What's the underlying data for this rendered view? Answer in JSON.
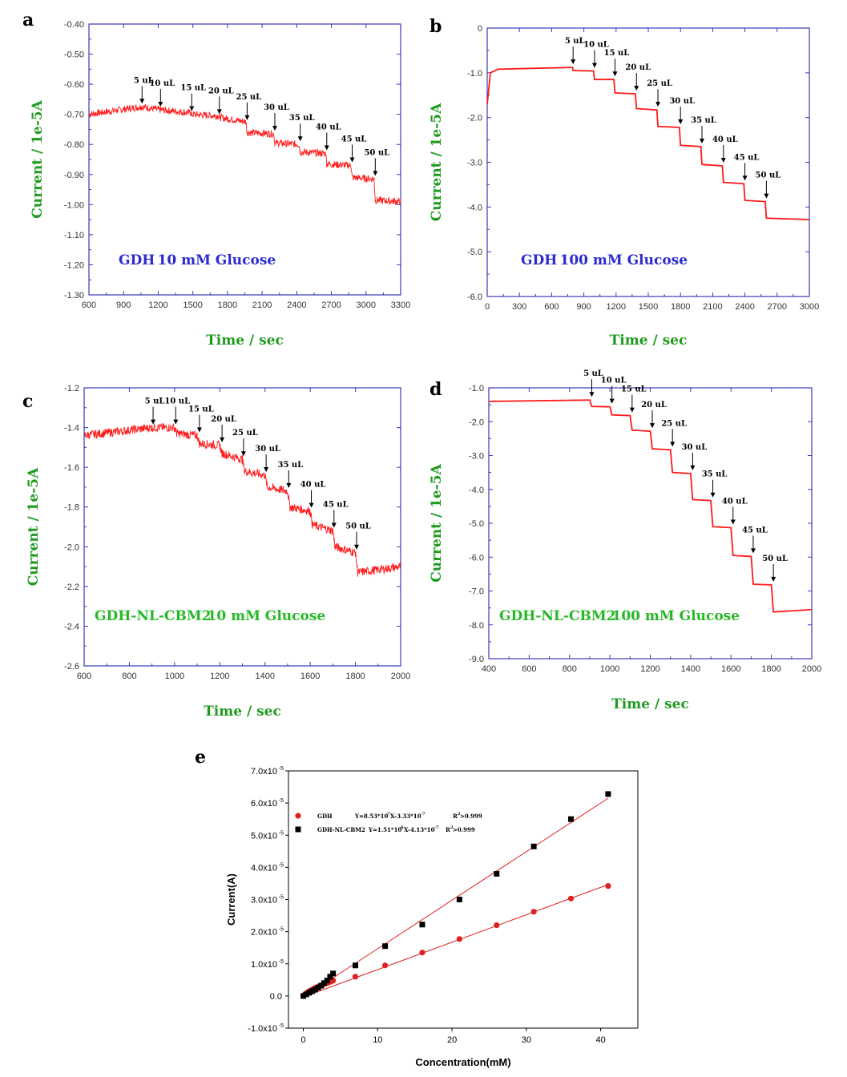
{
  "colors": {
    "trace": "#ff1a1a",
    "frame": "#3a3ab8",
    "green": "#1f9a1f",
    "blue": "#2a2ad0",
    "fitRed": "#e02020",
    "black": "#000000"
  },
  "chart_data": [
    {
      "id": "a",
      "panel_label": "a",
      "type": "line",
      "title": "GDH",
      "subtitle": "10 mM Glucose",
      "title_style": "blue",
      "xlabel": "Time / sec",
      "ylabel": "Current / 1e-5A",
      "xlim": [
        600,
        3300
      ],
      "ylim": [
        -1.3,
        -0.4
      ],
      "xticks": [
        "600",
        "900",
        "1200",
        "1500",
        "1800",
        "2100",
        "2400",
        "2700",
        "3000",
        "3300"
      ],
      "xtick_values": [
        600,
        900,
        1200,
        1500,
        1800,
        2100,
        2400,
        2700,
        3000,
        3300
      ],
      "yticks": [
        "-0.40",
        "-0.50",
        "-0.60",
        "-0.70",
        "-0.80",
        "-0.90",
        "-1.00",
        "-1.10",
        "-1.20",
        "-1.30"
      ],
      "ytick_values": [
        -0.4,
        -0.5,
        -0.6,
        -0.7,
        -0.8,
        -0.9,
        -1.0,
        -1.1,
        -1.2,
        -1.3
      ],
      "noise": 0.012,
      "trace": [
        [
          600,
          -0.7
        ],
        [
          1050,
          -0.675
        ],
        [
          1060,
          -0.675
        ],
        [
          1210,
          -0.685
        ],
        [
          1220,
          -0.685
        ],
        [
          1480,
          -0.695
        ],
        [
          1490,
          -0.7
        ],
        [
          1720,
          -0.705
        ],
        [
          1730,
          -0.71
        ],
        [
          1960,
          -0.725
        ],
        [
          1970,
          -0.76
        ],
        [
          2200,
          -0.765
        ],
        [
          2210,
          -0.795
        ],
        [
          2420,
          -0.8
        ],
        [
          2430,
          -0.825
        ],
        [
          2650,
          -0.83
        ],
        [
          2660,
          -0.865
        ],
        [
          2870,
          -0.87
        ],
        [
          2880,
          -0.91
        ],
        [
          3070,
          -0.915
        ],
        [
          3080,
          -0.985
        ],
        [
          3300,
          -0.99
        ]
      ],
      "annotations": [
        {
          "label": "5 uL",
          "x": 1060,
          "y": -0.675
        },
        {
          "label": "10 uL",
          "x": 1220,
          "y": -0.685
        },
        {
          "label": "15 uL",
          "x": 1490,
          "y": -0.7
        },
        {
          "label": "20 uL",
          "x": 1730,
          "y": -0.71
        },
        {
          "label": "25 uL",
          "x": 1970,
          "y": -0.73
        },
        {
          "label": "30 uL",
          "x": 2210,
          "y": -0.765
        },
        {
          "label": "35 uL",
          "x": 2430,
          "y": -0.8
        },
        {
          "label": "40 uL",
          "x": 2660,
          "y": -0.83
        },
        {
          "label": "45 uL",
          "x": 2880,
          "y": -0.87
        },
        {
          "label": "50 uL",
          "x": 3080,
          "y": -0.915
        }
      ]
    },
    {
      "id": "b",
      "panel_label": "b",
      "type": "line",
      "title": "GDH",
      "subtitle": "100 mM Glucose",
      "title_style": "blue",
      "xlabel": "Time / sec",
      "ylabel": "Current / 1e-5A",
      "xlim": [
        0,
        3000
      ],
      "ylim": [
        -6.0,
        0
      ],
      "xticks": [
        "0",
        "300",
        "600",
        "900",
        "1200",
        "1500",
        "1800",
        "2100",
        "2400",
        "2700",
        "3000"
      ],
      "xtick_values": [
        0,
        300,
        600,
        900,
        1200,
        1500,
        1800,
        2100,
        2400,
        2700,
        3000
      ],
      "yticks": [
        "0",
        "-1.0",
        "-2.0",
        "-3.0",
        "-4.0",
        "-5.0",
        "-6.0"
      ],
      "ytick_values": [
        0,
        -1,
        -2,
        -3,
        -4,
        -5,
        -6
      ],
      "noise": 0.0,
      "trace": [
        [
          0,
          -1.7
        ],
        [
          30,
          -1.0
        ],
        [
          100,
          -0.92
        ],
        [
          780,
          -0.88
        ],
        [
          795,
          -0.88
        ],
        [
          800,
          -0.95
        ],
        [
          990,
          -0.96
        ],
        [
          1000,
          -1.15
        ],
        [
          1180,
          -1.15
        ],
        [
          1190,
          -1.45
        ],
        [
          1380,
          -1.47
        ],
        [
          1390,
          -1.8
        ],
        [
          1580,
          -1.83
        ],
        [
          1590,
          -2.2
        ],
        [
          1790,
          -2.22
        ],
        [
          1800,
          -2.62
        ],
        [
          1990,
          -2.65
        ],
        [
          2000,
          -3.05
        ],
        [
          2190,
          -3.08
        ],
        [
          2200,
          -3.45
        ],
        [
          2390,
          -3.48
        ],
        [
          2400,
          -3.85
        ],
        [
          2590,
          -3.88
        ],
        [
          2600,
          -4.25
        ],
        [
          3000,
          -4.28
        ]
      ],
      "annotations": [
        {
          "label": "5 uL",
          "x": 800,
          "y": -0.88
        },
        {
          "label": "10 uL",
          "x": 1000,
          "y": -0.96
        },
        {
          "label": "15 uL",
          "x": 1190,
          "y": -1.15
        },
        {
          "label": "20 uL",
          "x": 1390,
          "y": -1.47
        },
        {
          "label": "25 uL",
          "x": 1590,
          "y": -1.83
        },
        {
          "label": "30 uL",
          "x": 1800,
          "y": -2.22
        },
        {
          "label": "35 uL",
          "x": 2000,
          "y": -2.65
        },
        {
          "label": "40 uL",
          "x": 2200,
          "y": -3.08
        },
        {
          "label": "45 uL",
          "x": 2400,
          "y": -3.48
        },
        {
          "label": "50 uL",
          "x": 2600,
          "y": -3.88
        }
      ]
    },
    {
      "id": "c",
      "panel_label": "c",
      "type": "line",
      "title": "GDH-NL-CBM2",
      "subtitle": "10 mM Glucose",
      "title_style": "green",
      "xlabel": "Time / sec",
      "ylabel": "Current / 1e-5A",
      "xlim": [
        600,
        2000
      ],
      "ylim": [
        -2.6,
        -1.2
      ],
      "xticks": [
        "600",
        "800",
        "1000",
        "1200",
        "1400",
        "1600",
        "1800",
        "2000"
      ],
      "xtick_values": [
        600,
        800,
        1000,
        1200,
        1400,
        1600,
        1800,
        2000
      ],
      "yticks": [
        "-1.2",
        "-1.4",
        "-1.6",
        "-1.8",
        "-2.0",
        "-2.2",
        "-2.4",
        "-2.6"
      ],
      "ytick_values": [
        -1.2,
        -1.4,
        -1.6,
        -1.8,
        -2.0,
        -2.2,
        -2.4,
        -2.6
      ],
      "noise": 0.022,
      "trace": [
        [
          600,
          -1.44
        ],
        [
          900,
          -1.4
        ],
        [
          1000,
          -1.4
        ],
        [
          1010,
          -1.43
        ],
        [
          1100,
          -1.44
        ],
        [
          1110,
          -1.48
        ],
        [
          1200,
          -1.49
        ],
        [
          1210,
          -1.53
        ],
        [
          1300,
          -1.56
        ],
        [
          1310,
          -1.62
        ],
        [
          1400,
          -1.64
        ],
        [
          1410,
          -1.7
        ],
        [
          1500,
          -1.72
        ],
        [
          1510,
          -1.8
        ],
        [
          1600,
          -1.82
        ],
        [
          1610,
          -1.89
        ],
        [
          1700,
          -1.92
        ],
        [
          1710,
          -2.0
        ],
        [
          1800,
          -2.03
        ],
        [
          1810,
          -2.13
        ],
        [
          2000,
          -2.1
        ]
      ],
      "annotations": [
        {
          "label": "5 uL",
          "x": 905,
          "y": -1.4
        },
        {
          "label": "10 uL",
          "x": 1005,
          "y": -1.4
        },
        {
          "label": "15 uL",
          "x": 1110,
          "y": -1.44
        },
        {
          "label": "20 uL",
          "x": 1210,
          "y": -1.49
        },
        {
          "label": "25 uL",
          "x": 1305,
          "y": -1.56
        },
        {
          "label": "30 uL",
          "x": 1405,
          "y": -1.64
        },
        {
          "label": "35 uL",
          "x": 1505,
          "y": -1.72
        },
        {
          "label": "40 uL",
          "x": 1605,
          "y": -1.82
        },
        {
          "label": "45 uL",
          "x": 1705,
          "y": -1.92
        },
        {
          "label": "50 uL",
          "x": 1805,
          "y": -2.03
        }
      ]
    },
    {
      "id": "d",
      "panel_label": "d",
      "type": "line",
      "title": "GDH-NL-CBM2",
      "subtitle": "100 mM Glucose",
      "title_style": "green",
      "xlabel": "Time / sec",
      "ylabel": "Current / 1e-5A",
      "xlim": [
        400,
        2000
      ],
      "ylim": [
        -9.0,
        -1.0
      ],
      "xticks": [
        "400",
        "600",
        "800",
        "1000",
        "1200",
        "1400",
        "1600",
        "1800",
        "2000"
      ],
      "xtick_values": [
        400,
        600,
        800,
        1000,
        1200,
        1400,
        1600,
        1800,
        2000
      ],
      "yticks": [
        "-1.0",
        "-2.0",
        "-3.0",
        "-4.0",
        "-5.0",
        "-6.0",
        "-7.0",
        "-8.0",
        "-9.0"
      ],
      "ytick_values": [
        -1,
        -2,
        -3,
        -4,
        -5,
        -6,
        -7,
        -8,
        -9
      ],
      "noise": 0.0,
      "trace": [
        [
          400,
          -1.4
        ],
        [
          900,
          -1.36
        ],
        [
          910,
          -1.55
        ],
        [
          1000,
          -1.56
        ],
        [
          1010,
          -1.8
        ],
        [
          1100,
          -1.82
        ],
        [
          1110,
          -2.25
        ],
        [
          1200,
          -2.28
        ],
        [
          1210,
          -2.8
        ],
        [
          1300,
          -2.83
        ],
        [
          1310,
          -3.5
        ],
        [
          1400,
          -3.53
        ],
        [
          1410,
          -4.3
        ],
        [
          1500,
          -4.33
        ],
        [
          1510,
          -5.1
        ],
        [
          1600,
          -5.13
        ],
        [
          1610,
          -5.95
        ],
        [
          1700,
          -5.98
        ],
        [
          1710,
          -6.8
        ],
        [
          1800,
          -6.82
        ],
        [
          1810,
          -7.62
        ],
        [
          2000,
          -7.55
        ]
      ],
      "annotations": [
        {
          "label": "5 uL",
          "x": 910,
          "y": -1.36
        },
        {
          "label": "10 uL",
          "x": 1010,
          "y": -1.56
        },
        {
          "label": "15 uL",
          "x": 1110,
          "y": -1.82
        },
        {
          "label": "20 uL",
          "x": 1210,
          "y": -2.28
        },
        {
          "label": "25 uL",
          "x": 1310,
          "y": -2.83
        },
        {
          "label": "30 uL",
          "x": 1410,
          "y": -3.53
        },
        {
          "label": "35 uL",
          "x": 1510,
          "y": -4.33
        },
        {
          "label": "40 uL",
          "x": 1610,
          "y": -5.13
        },
        {
          "label": "45 uL",
          "x": 1710,
          "y": -5.98
        },
        {
          "label": "50 uL",
          "x": 1810,
          "y": -6.82
        }
      ]
    },
    {
      "id": "e",
      "panel_label": "e",
      "type": "scatter",
      "xlabel": "Concentration(mM)",
      "ylabel": "Current(A)",
      "xlim": [
        -2,
        45
      ],
      "ylim": [
        -1e-05,
        7e-05
      ],
      "xticks": [
        "0",
        "10",
        "20",
        "30",
        "40"
      ],
      "xtick_values": [
        0,
        10,
        20,
        30,
        40
      ],
      "yticks": [
        "-1.0x10",
        "0.0",
        "1.0x10",
        "2.0x10",
        "3.0x10",
        "4.0x10",
        "5.0x10",
        "6.0x10",
        "7.0x10"
      ],
      "ytick_exp": [
        "-5",
        "",
        "-5",
        "-5",
        "-5",
        "-5",
        "-5",
        "-5",
        "-5"
      ],
      "ytick_values": [
        -1e-05,
        0,
        1e-05,
        2e-05,
        3e-05,
        4e-05,
        5e-05,
        6e-05,
        7e-05
      ],
      "legend_position": "top-left",
      "series": [
        {
          "name": "GDH",
          "marker": "circle",
          "color": "#e02020",
          "equation": "Y=8.53*10",
          "eq_exp1": "-7",
          "eq_mid": "X-3.33*10",
          "eq_exp2": "-7",
          "r2": "R",
          "r2_sup": "2",
          "r2_tail": ">0.999",
          "fit": {
            "slope": 8.53e-07,
            "intercept": -3.33e-07,
            "x_range": [
              0,
              41
            ]
          },
          "x": [
            0,
            0.2,
            0.4,
            0.6,
            0.8,
            1.0,
            1.2,
            1.4,
            1.6,
            1.8,
            2.0,
            2.2,
            2.4,
            2.6,
            2.8,
            3.0,
            3.2,
            3.4,
            3.6,
            3.8,
            4.0,
            7.0,
            11.0,
            16.0,
            21.0,
            26.0,
            31.0,
            36.0,
            41.0
          ],
          "y": [
            0,
            5e-07,
            8e-07,
            1.2e-06,
            1.5e-06,
            1.7e-06,
            2e-06,
            2.2e-06,
            2.5e-06,
            2.7e-06,
            2.9e-06,
            3.1e-06,
            3.3e-06,
            3.5e-06,
            3.7e-06,
            3.9e-06,
            4e-06,
            4.2e-06,
            4.4e-06,
            4.6e-06,
            4.8e-06,
            6e-06,
            9.5e-06,
            1.35e-05,
            1.77e-05,
            2.2e-05,
            2.62e-05,
            3.03e-05,
            3.42e-05
          ]
        },
        {
          "name": "GDH-NL-CBM2",
          "marker": "square",
          "color": "#000000",
          "equation": "Y=1.51*10",
          "eq_exp1": "-6",
          "eq_mid": "X-4.13*10",
          "eq_exp2": "-7",
          "r2": "R",
          "r2_sup": "2",
          "r2_tail": ">0.999",
          "fit": {
            "slope": 1.51e-06,
            "intercept": -4.13e-07,
            "x_range": [
              0,
              41
            ]
          },
          "x": [
            0,
            0.4,
            0.8,
            1.2,
            1.6,
            2.0,
            2.4,
            2.8,
            3.2,
            3.6,
            4.0,
            7.0,
            11.0,
            16.0,
            21.0,
            26.0,
            31.0,
            36.0,
            41.0
          ],
          "y": [
            0,
            5e-07,
            1e-06,
            1.5e-06,
            2e-06,
            2.6e-06,
            3.2e-06,
            4e-06,
            4.8e-06,
            6e-06,
            7e-06,
            9.5e-06,
            1.55e-05,
            2.22e-05,
            3e-05,
            3.8e-05,
            4.65e-05,
            5.5e-05,
            6.28e-05
          ]
        }
      ]
    }
  ]
}
